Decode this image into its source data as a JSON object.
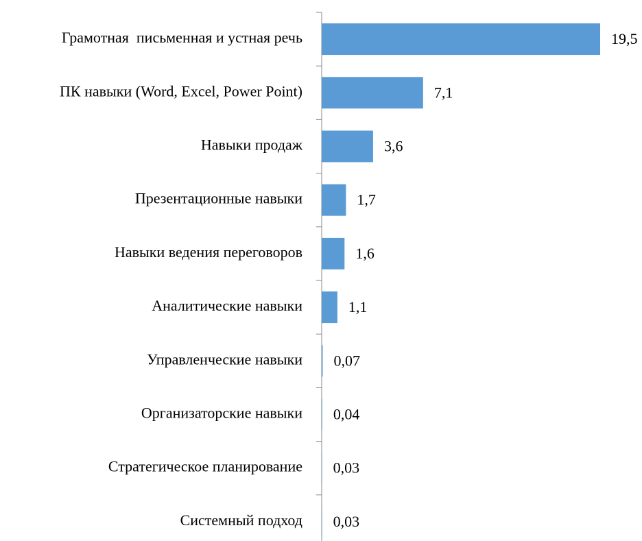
{
  "chart_data": {
    "type": "bar",
    "orientation": "horizontal",
    "color": "#5b9bd5",
    "categories": [
      "Грамотная  письменная и устная речь",
      "ПК навыки (Word, Excel, Power Point)",
      "Навыки продаж",
      "Презентационные навыки",
      "Навыки ведения переговоров",
      "Аналитические навыки",
      "Управленческие навыки",
      "Организаторские навыки",
      "Стратегическое планирование",
      "Системный подход"
    ],
    "values": [
      19.5,
      7.1,
      3.6,
      1.7,
      1.6,
      1.1,
      0.07,
      0.04,
      0.03,
      0.03
    ],
    "value_labels": [
      "19,5",
      "7,1",
      "3,6",
      "1,7",
      "1,6",
      "1,1",
      "0,07",
      "0,04",
      "0,03",
      "0,03"
    ]
  }
}
